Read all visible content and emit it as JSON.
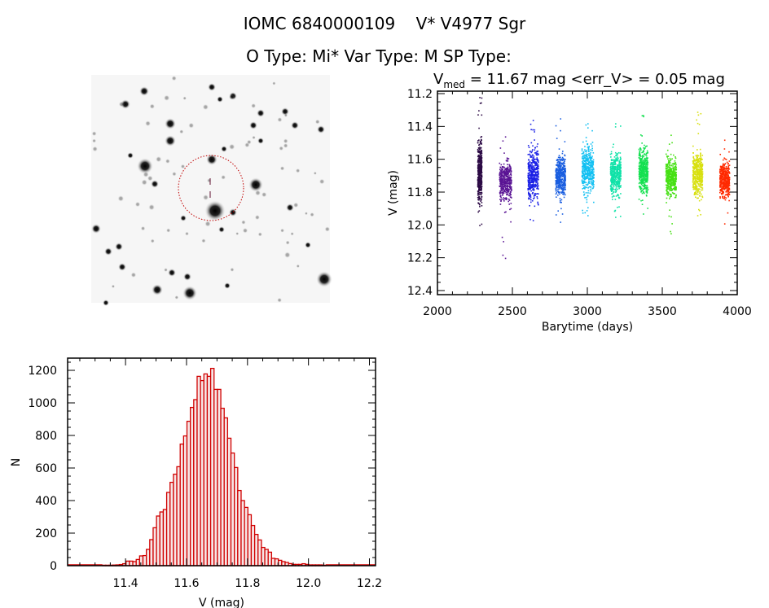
{
  "title": {
    "line1": "IOMC 6840000109    V* V4977 Sgr",
    "line2": "O Type: Mi*  Var Type: M  SP Type:"
  },
  "chart_data": [
    {
      "type": "scatter",
      "name": "light-curve",
      "title_main": "V",
      "title_sub": "med",
      "title_rest": " = 11.67 mag <err_V> = 0.05 mag",
      "xlabel": "Barytime (days)",
      "ylabel": "V (mag)",
      "xlim": [
        2000,
        4000
      ],
      "ylim": [
        12.425,
        11.185
      ],
      "y_inverted": true,
      "xticks": [
        "2000",
        "2500",
        "3000",
        "3500",
        "4000"
      ],
      "yticks": [
        "11.2",
        "11.4",
        "11.6",
        "11.8",
        "12.0",
        "12.2",
        "12.4"
      ],
      "grid": false,
      "seasons": [
        {
          "t": [
            2265,
            2292
          ],
          "v_core": [
            11.38,
            11.98
          ],
          "v_range": [
            11.22,
            12.0
          ],
          "color": "#2c0a45"
        },
        {
          "t": [
            2410,
            2490
          ],
          "v_core": [
            11.54,
            11.92
          ],
          "v_range": [
            11.46,
            12.2
          ],
          "color": "#5a1494"
        },
        {
          "t": [
            2600,
            2670
          ],
          "v_core": [
            11.45,
            11.93
          ],
          "v_range": [
            11.36,
            11.97
          ],
          "color": "#1c22e6"
        },
        {
          "t": [
            2785,
            2850
          ],
          "v_core": [
            11.5,
            11.9
          ],
          "v_range": [
            11.35,
            11.98
          ],
          "color": "#1a5ee0"
        },
        {
          "t": [
            2960,
            3040
          ],
          "v_core": [
            11.42,
            11.9
          ],
          "v_range": [
            11.38,
            11.94
          ],
          "color": "#12c0f2"
        },
        {
          "t": [
            3150,
            3220
          ],
          "v_core": [
            11.48,
            11.9
          ],
          "v_range": [
            11.38,
            11.95
          ],
          "color": "#10e2a8"
        },
        {
          "t": [
            3340,
            3400
          ],
          "v_core": [
            11.45,
            11.9
          ],
          "v_range": [
            11.33,
            11.93
          ],
          "color": "#14e050"
        },
        {
          "t": [
            3520,
            3590
          ],
          "v_core": [
            11.53,
            11.9
          ],
          "v_range": [
            11.45,
            12.05
          ],
          "color": "#46e014"
        },
        {
          "t": [
            3700,
            3765
          ],
          "v_core": [
            11.47,
            11.9
          ],
          "v_range": [
            11.31,
            11.94
          ],
          "color": "#d8e010"
        },
        {
          "t": [
            3880,
            3945
          ],
          "v_core": [
            11.55,
            11.9
          ],
          "v_range": [
            11.48,
            11.99
          ],
          "color": "#ff2a00"
        }
      ]
    },
    {
      "type": "bar",
      "name": "histogram",
      "xlabel": "V (mag)",
      "ylabel": "N",
      "xlim": [
        11.21,
        12.22
      ],
      "ylim": [
        0,
        1275
      ],
      "xticks": [
        "11.4",
        "11.6",
        "11.8",
        "12.0",
        "12.2"
      ],
      "yticks": [
        "0",
        "200",
        "400",
        "600",
        "800",
        "1000",
        "1200"
      ],
      "bin_start": 11.324,
      "bin_width": 0.0111,
      "counts": [
        3,
        3,
        3,
        4,
        5,
        7,
        12,
        28,
        28,
        25,
        38,
        60,
        62,
        100,
        160,
        233,
        305,
        330,
        345,
        450,
        512,
        562,
        608,
        747,
        797,
        887,
        972,
        1020,
        1163,
        1137,
        1178,
        1163,
        1212,
        1083,
        1083,
        967,
        908,
        783,
        692,
        603,
        462,
        400,
        358,
        313,
        247,
        192,
        158,
        112,
        100,
        83,
        45,
        42,
        33,
        25,
        20,
        13,
        8,
        8,
        8,
        12,
        8,
        5,
        5,
        5,
        5,
        3
      ],
      "color": "#d00000"
    }
  ]
}
